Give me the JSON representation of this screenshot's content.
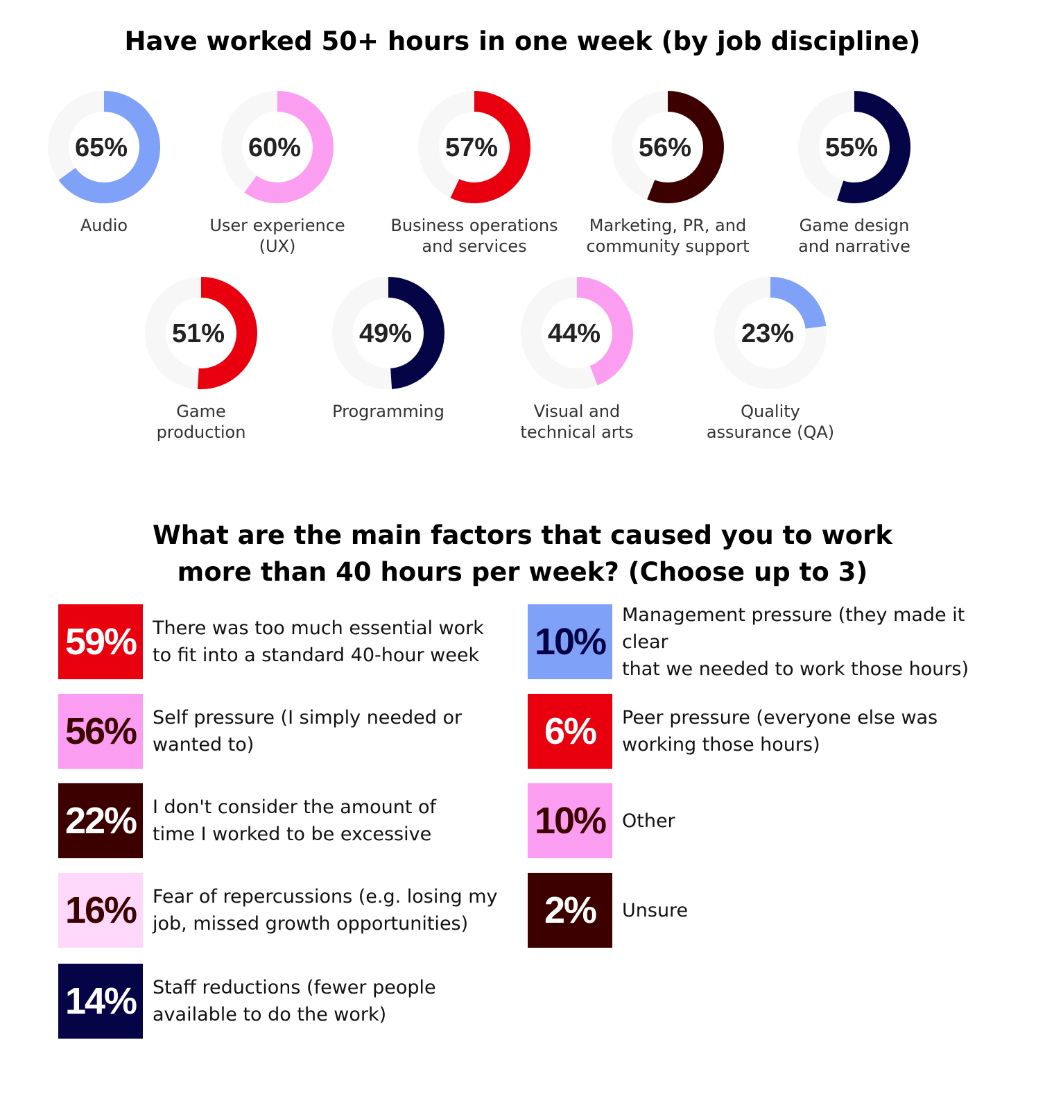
{
  "section1": {
    "title": "Have worked 50+ hours in one week (by job discipline)"
  },
  "section2": {
    "title_line1": "What are the main factors that caused you to work",
    "title_line2": "more than 40 hours per week? (Choose up to 3)"
  },
  "chart_data": [
    {
      "type": "donut",
      "title": "Have worked 50+ hours in one week (by job discipline)",
      "unit": "%",
      "categories": [
        {
          "label": "Audio",
          "label_lines": [
            "Audio"
          ],
          "value": 65,
          "color": "#7fa1f7"
        },
        {
          "label": "User experience (UX)",
          "label_lines": [
            "User experience",
            "(UX)"
          ],
          "value": 60,
          "color": "#fb9df1"
        },
        {
          "label": "Business operations and services",
          "label_lines": [
            "Business operations",
            "and services"
          ],
          "value": 57,
          "color": "#e8000f"
        },
        {
          "label": "Marketing, PR, and community support",
          "label_lines": [
            "Marketing, PR, and",
            "community support"
          ],
          "value": 56,
          "color": "#3d0000"
        },
        {
          "label": "Game design and narrative",
          "label_lines": [
            "Game design",
            "and narrative"
          ],
          "value": 55,
          "color": "#050447"
        },
        {
          "label": "Game production",
          "label_lines": [
            "Game",
            "production"
          ],
          "value": 51,
          "color": "#e8000f"
        },
        {
          "label": "Programming",
          "label_lines": [
            "Programming"
          ],
          "value": 49,
          "color": "#050447"
        },
        {
          "label": "Visual and technical arts",
          "label_lines": [
            "Visual and",
            "technical arts"
          ],
          "value": 44,
          "color": "#fb9df1"
        },
        {
          "label": "Quality assurance (QA)",
          "label_lines": [
            "Quality",
            "assurance (QA)"
          ],
          "value": 23,
          "color": "#7fa1f7"
        }
      ]
    },
    {
      "type": "table",
      "title": "What are the main factors that caused you to work more than 40 hours per week? (Choose up to 3)",
      "unit": "%",
      "items": [
        {
          "value": 59,
          "text_lines": [
            "There was too much essential work",
            "to fit into a standard 40-hour week"
          ],
          "bg": "#e8000f",
          "fg": "#ffffff"
        },
        {
          "value": 56,
          "text_lines": [
            "Self pressure (I simply needed or",
            "wanted to)"
          ],
          "bg": "#fb9df1",
          "fg": "#3d0000"
        },
        {
          "value": 22,
          "text_lines": [
            "I don't consider the amount of",
            "time I worked to be excessive"
          ],
          "bg": "#3d0000",
          "fg": "#ffffff"
        },
        {
          "value": 16,
          "text_lines": [
            "Fear of repercussions (e.g. losing my",
            "job, missed growth opportunities)"
          ],
          "bg": "#fdd8fa",
          "fg": "#3d0000"
        },
        {
          "value": 14,
          "text_lines": [
            "Staff reductions (fewer people",
            "available to do the work)"
          ],
          "bg": "#050447",
          "fg": "#ffffff"
        },
        {
          "value": 10,
          "text_lines": [
            "Management pressure (they made it clear",
            "that we needed to work those hours)"
          ],
          "bg": "#7fa1f7",
          "fg": "#050447"
        },
        {
          "value": 6,
          "text_lines": [
            "Peer pressure (everyone else was",
            "working those hours)"
          ],
          "bg": "#e8000f",
          "fg": "#ffffff"
        },
        {
          "value": 10,
          "text_lines": [
            "Other"
          ],
          "bg": "#fb9df1",
          "fg": "#3d0000"
        },
        {
          "value": 2,
          "text_lines": [
            "Unsure"
          ],
          "bg": "#3d0000",
          "fg": "#ffffff"
        }
      ]
    }
  ]
}
